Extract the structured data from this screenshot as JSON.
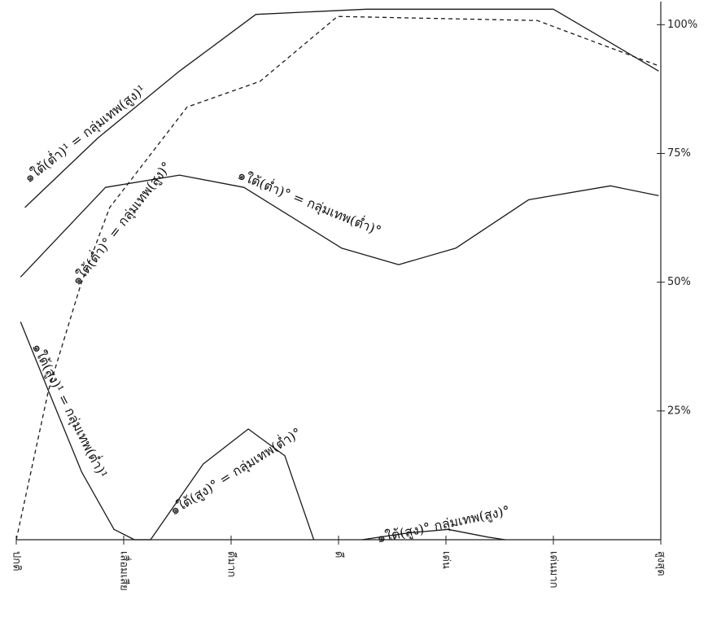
{
  "chart_data": {
    "type": "line",
    "xlim": [
      0,
      6
    ],
    "ylim": [
      0,
      104
    ],
    "xticks": [
      {
        "value": 0,
        "label": "ปกติ"
      },
      {
        "value": 1,
        "label": "เสื่อมเสีย"
      },
      {
        "value": 2,
        "label": "ดีมาก"
      },
      {
        "value": 3,
        "label": "ดี"
      },
      {
        "value": 4,
        "label": "เด่น"
      },
      {
        "value": 5,
        "label": "เด่นมาก"
      },
      {
        "value": 6,
        "label": "สูงสุด"
      }
    ],
    "yticks": [
      {
        "value": 25,
        "label": "25%"
      },
      {
        "value": 50,
        "label": "50%"
      },
      {
        "value": 75,
        "label": "75%"
      },
      {
        "value": 100,
        "label": "100%"
      }
    ],
    "series": [
      {
        "color": "#1a1a1a",
        "dashed": false,
        "x": [
          0.08,
          0.76,
          1.52,
          2.23,
          3.26,
          5,
          5.98
        ],
        "values": [
          64.5,
          78,
          91,
          102,
          103,
          103,
          91
        ]
      },
      {
        "color": "#1a1a1a",
        "dashed": true,
        "x": [
          0,
          0.3,
          0.6,
          0.87,
          1.59,
          2.27,
          2.99,
          4.85,
          5.98
        ],
        "values": [
          0,
          29,
          49.5,
          64.5,
          84,
          89,
          101.6,
          100.8,
          92
        ]
      },
      {
        "color": "#1a1a1a",
        "dashed": false,
        "x": [
          0.04,
          0.83,
          1.52,
          2.12,
          3.03,
          3.56,
          4.09,
          4.77,
          5.53,
          5.98
        ],
        "values": [
          51,
          68.4,
          70.8,
          68.4,
          56.6,
          53.4,
          56.6,
          66,
          68.7,
          66.8
        ]
      },
      {
        "color": "#1a1a1a",
        "dashed": false,
        "x": [
          0.04,
          0.3,
          0.61,
          0.91,
          1.1,
          1.25,
          1.74,
          2.16,
          2.5,
          2.77,
          3,
          3.22,
          3.64,
          4.02,
          4.39,
          4.55
        ],
        "values": [
          42.3,
          28.9,
          13.1,
          2,
          0,
          0,
          14.7,
          21.5,
          16.3,
          0,
          null,
          0,
          1.3,
          2,
          0.5,
          0
        ]
      }
    ],
    "annotations": [
      "๑ใต้(ต่ำ)¹ = กลุ่มเทพ(สูง)¹",
      "๑ใต้(ต่ำ)° = กลุ่มเทพ(สูง)°",
      "๑ใต้(ต่ำ)° = กลุ่มเทพ(ต่ำ)°",
      "๑ใต้(สูง)¹ = กลุ่มเทพ(ต่ำ)¹",
      "๑ใต้(สูง)° = กลุ่มเทพ(ต่ำ)°",
      "๑ใต้(สูง)° กลุ่มเทพ(สูง)°"
    ]
  }
}
